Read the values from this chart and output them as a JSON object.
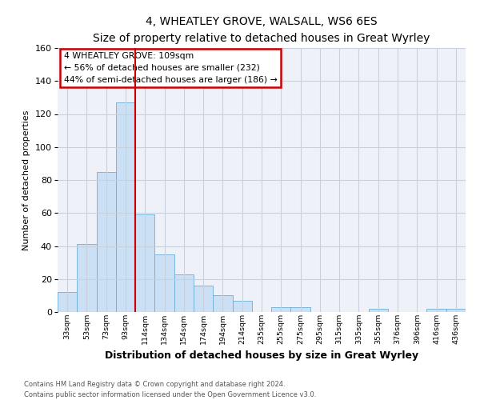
{
  "title": "4, WHEATLEY GROVE, WALSALL, WS6 6ES",
  "subtitle": "Size of property relative to detached houses in Great Wyrley",
  "xlabel": "Distribution of detached houses by size in Great Wyrley",
  "ylabel": "Number of detached properties",
  "bar_labels": [
    "33sqm",
    "53sqm",
    "73sqm",
    "93sqm",
    "114sqm",
    "134sqm",
    "154sqm",
    "174sqm",
    "194sqm",
    "214sqm",
    "235sqm",
    "255sqm",
    "275sqm",
    "295sqm",
    "315sqm",
    "335sqm",
    "355sqm",
    "376sqm",
    "396sqm",
    "416sqm",
    "436sqm"
  ],
  "bar_heights": [
    12,
    41,
    85,
    127,
    59,
    35,
    23,
    16,
    10,
    7,
    0,
    3,
    3,
    0,
    0,
    0,
    2,
    0,
    0,
    2,
    2
  ],
  "bar_color": "#cce0f5",
  "bar_edge_color": "#6baed6",
  "ylim": [
    0,
    160
  ],
  "yticks": [
    0,
    20,
    40,
    60,
    80,
    100,
    120,
    140,
    160
  ],
  "vline_x_index": 3.5,
  "property_line_label": "4 WHEATLEY GROVE: 109sqm",
  "annotation_line1": "← 56% of detached houses are smaller (232)",
  "annotation_line2": "44% of semi-detached houses are larger (186) →",
  "annotation_box_color": "#ffffff",
  "annotation_box_edge_color": "#cc0000",
  "vline_color": "#cc0000",
  "footer_line1": "Contains HM Land Registry data © Crown copyright and database right 2024.",
  "footer_line2": "Contains public sector information licensed under the Open Government Licence v3.0.",
  "bg_color": "#ffffff",
  "axes_bg_color": "#eef2f8",
  "grid_color": "#c8d0dc",
  "title_fontsize": 10,
  "subtitle_fontsize": 9
}
